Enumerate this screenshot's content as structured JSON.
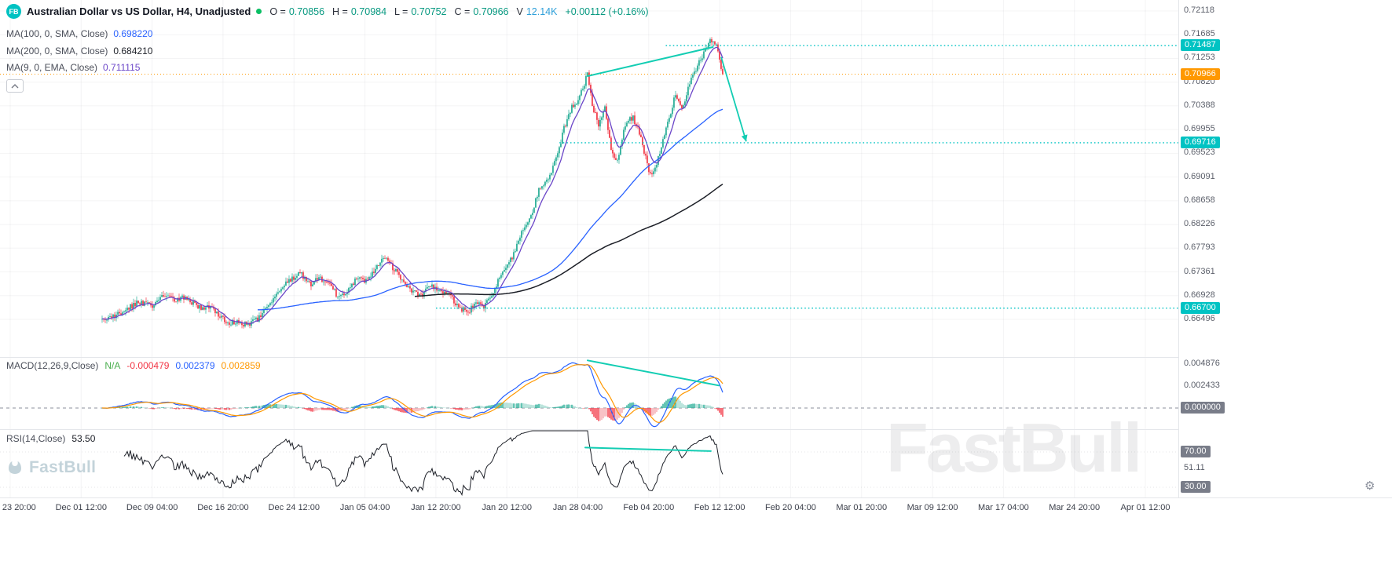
{
  "header": {
    "logo": "FB",
    "title": "Australian Dollar vs US Dollar, H4, Unadjusted",
    "ohlc": [
      {
        "label": "O =",
        "value": "0.70856",
        "color": "#089981"
      },
      {
        "label": "H =",
        "value": "0.70984",
        "color": "#089981"
      },
      {
        "label": "L =",
        "value": "0.70752",
        "color": "#089981"
      },
      {
        "label": "C =",
        "value": "0.70966",
        "color": "#089981"
      },
      {
        "label": "V",
        "value": "12.14K",
        "color": "#2e9fd9"
      },
      {
        "label": "",
        "value": "+0.00112 (+0.16%)",
        "color": "#089981"
      }
    ]
  },
  "indicators_legend": [
    {
      "name": "MA(100, 0, SMA, Close)",
      "value": "0.698220",
      "color": "#2962ff"
    },
    {
      "name": "MA(200, 0, SMA, Close)",
      "value": "0.684210",
      "color": "#1c1f27"
    },
    {
      "name": "MA(9, 0, EMA, Close)",
      "value": "0.711115",
      "color": "#6b46c8"
    }
  ],
  "macd_legend": {
    "name": "MACD(12,26,9,Close)",
    "values": [
      {
        "text": "N/A",
        "color": "#4caf50"
      },
      {
        "text": "-0.000479",
        "color": "#f23645"
      },
      {
        "text": "0.002379",
        "color": "#2962ff"
      },
      {
        "text": "0.002859",
        "color": "#ff9800"
      }
    ]
  },
  "rsi_legend": {
    "name": "RSI(14,Close)",
    "value": "53.50"
  },
  "watermark": "FastBull",
  "logo_text": "FastBull",
  "settings_icon": "⚙",
  "chart_data": {
    "type": "candlestick",
    "title": "Australian Dollar vs US Dollar",
    "interval": "H4",
    "bars": 396,
    "ohlc_current": {
      "open": 0.70856,
      "high": 0.70984,
      "low": 0.70752,
      "close": 0.70966,
      "volume": "12.14K",
      "change": "+0.00112 (+0.16%)"
    },
    "price_path": [
      [
        0.0,
        0.665
      ],
      [
        0.02,
        0.6655
      ],
      [
        0.04,
        0.6668
      ],
      [
        0.06,
        0.6682
      ],
      [
        0.08,
        0.6672
      ],
      [
        0.1,
        0.6694
      ],
      [
        0.115,
        0.6684
      ],
      [
        0.13,
        0.669
      ],
      [
        0.145,
        0.668
      ],
      [
        0.16,
        0.6668
      ],
      [
        0.175,
        0.6674
      ],
      [
        0.19,
        0.6656
      ],
      [
        0.205,
        0.6642
      ],
      [
        0.22,
        0.6646
      ],
      [
        0.235,
        0.6638
      ],
      [
        0.252,
        0.6652
      ],
      [
        0.268,
        0.6678
      ],
      [
        0.285,
        0.6702
      ],
      [
        0.3,
        0.6718
      ],
      [
        0.318,
        0.6734
      ],
      [
        0.335,
        0.6714
      ],
      [
        0.35,
        0.6724
      ],
      [
        0.365,
        0.6718
      ],
      [
        0.38,
        0.669
      ],
      [
        0.395,
        0.6702
      ],
      [
        0.41,
        0.6724
      ],
      [
        0.425,
        0.6718
      ],
      [
        0.44,
        0.6742
      ],
      [
        0.455,
        0.6764
      ],
      [
        0.47,
        0.6742
      ],
      [
        0.485,
        0.6718
      ],
      [
        0.5,
        0.67
      ],
      [
        0.515,
        0.6694
      ],
      [
        0.53,
        0.6714
      ],
      [
        0.545,
        0.67
      ],
      [
        0.56,
        0.6694
      ],
      [
        0.575,
        0.667
      ],
      [
        0.59,
        0.6664
      ],
      [
        0.602,
        0.6678
      ],
      [
        0.615,
        0.6672
      ],
      [
        0.63,
        0.67
      ],
      [
        0.645,
        0.6738
      ],
      [
        0.66,
        0.676
      ],
      [
        0.675,
        0.6804
      ],
      [
        0.69,
        0.6836
      ],
      [
        0.705,
        0.689
      ],
      [
        0.718,
        0.6902
      ],
      [
        0.732,
        0.6942
      ],
      [
        0.745,
        0.7
      ],
      [
        0.757,
        0.7036
      ],
      [
        0.768,
        0.7052
      ],
      [
        0.775,
        0.707
      ],
      [
        0.782,
        0.7098
      ],
      [
        0.79,
        0.704
      ],
      [
        0.8,
        0.7006
      ],
      [
        0.81,
        0.704
      ],
      [
        0.82,
        0.6962
      ],
      [
        0.83,
        0.6938
      ],
      [
        0.843,
        0.7004
      ],
      [
        0.855,
        0.7018
      ],
      [
        0.865,
        0.6992
      ],
      [
        0.875,
        0.6948
      ],
      [
        0.885,
        0.6906
      ],
      [
        0.898,
        0.6952
      ],
      [
        0.912,
        0.7008
      ],
      [
        0.924,
        0.7064
      ],
      [
        0.934,
        0.7032
      ],
      [
        0.948,
        0.7082
      ],
      [
        0.962,
        0.7118
      ],
      [
        0.98,
        0.7158
      ],
      [
        0.99,
        0.7146
      ],
      [
        1.0,
        0.7097
      ]
    ],
    "price_axis": {
      "ticks": [
        0.72118,
        0.71685,
        0.71253,
        0.7082,
        0.70388,
        0.69955,
        0.69523,
        0.69091,
        0.68658,
        0.68226,
        0.67793,
        0.67361,
        0.66928,
        0.66496
      ],
      "current": 0.70966
    },
    "time_axis": [
      "Nov 23 20:00",
      "Dec 01 12:00",
      "Dec 09 04:00",
      "Dec 16 20:00",
      "Dec 24 12:00",
      "Jan 05 04:00",
      "Jan 12 20:00",
      "Jan 20 12:00",
      "Jan 28 04:00",
      "Feb 04 20:00",
      "Feb 12 12:00",
      "Feb 20 04:00",
      "Mar 01 20:00",
      "Mar 09 12:00",
      "Mar 17 04:00",
      "Mar 24 20:00",
      "Apr 01 12:00"
    ],
    "ma": [
      {
        "type": "sma",
        "length": 100,
        "color": "#2962ff"
      },
      {
        "type": "sma",
        "length": 200,
        "color": "#1c1f27"
      },
      {
        "type": "ema",
        "length": 9,
        "color": "#6b46c8"
      }
    ],
    "macd": {
      "fast": 12,
      "slow": 26,
      "signal": 9,
      "axis_ticks": [
        0.004876,
        0.002433
      ],
      "zero": 0.0
    },
    "rsi": {
      "length": 14,
      "levels": [
        70,
        30
      ],
      "current_axis": 51.11
    },
    "annotations": {
      "levels": [
        {
          "price": 0.71487,
          "x1": 0.565
        },
        {
          "price": 0.69716,
          "x1": 0.4747
        },
        {
          "price": 0.667,
          "x1": 0.37
        }
      ],
      "trendlines": [
        {
          "pane": "main",
          "x1": 0.4987,
          "v1": 0.7093,
          "x2": 0.605,
          "v2": 0.7146
        },
        {
          "pane": "macd",
          "x1": 0.4987,
          "v1": 0.0053,
          "x2": 0.61,
          "v2": 0.0025
        },
        {
          "pane": "rsi",
          "x1": 0.4967,
          "v1": 75,
          "x2": 0.6033,
          "v2": 71
        }
      ],
      "arrow": {
        "x1": 0.612,
        "v1": 0.7128,
        "x2": 0.6333,
        "v2": 0.6974
      }
    },
    "colors": {
      "up": "#22ab94",
      "down": "#f23645",
      "macd_line": "#2962ff",
      "signal_line": "#ff9800",
      "hist_pos": "#22ab94",
      "hist_pos_soft": "#9ed8cd",
      "hist_neg": "#f23645",
      "hist_neg_soft": "#f6a9ad",
      "teal_badge": "#00c3c3",
      "teal_line": "#13cdb3",
      "current_line": "#ff9800",
      "gray_badge": "#797d89",
      "rsi_line": "#1c1f27"
    }
  }
}
